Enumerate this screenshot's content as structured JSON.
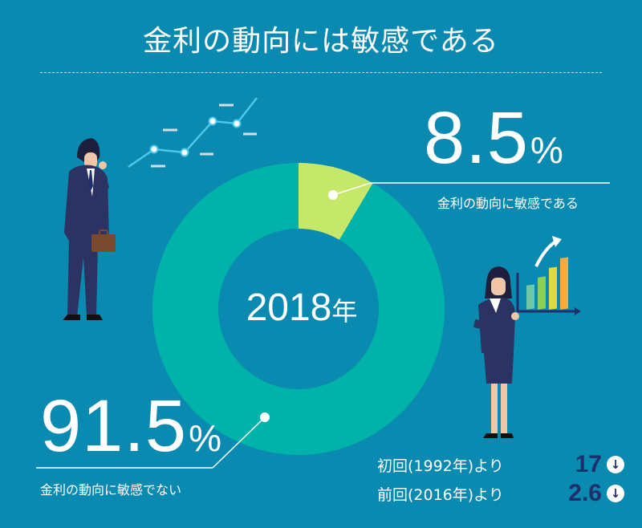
{
  "title": "金利の動向には敏感である",
  "chart_data": {
    "type": "pie",
    "center_label": "2018",
    "center_unit": "年",
    "series": [
      {
        "value": 8.5,
        "value_text": "8.5",
        "unit": "%",
        "label": "金利の動向に敏感である",
        "color": "#c6e86a"
      },
      {
        "value": 91.5,
        "value_text": "91.5",
        "unit": "%",
        "label": "金利の動向に敏感でない",
        "color": "#00b3aa"
      }
    ]
  },
  "comparisons": [
    {
      "label": "初回(1992年)より",
      "value": "17",
      "direction": "down"
    },
    {
      "label": "前回(2016年)より",
      "value": "2.6",
      "direction": "down"
    }
  ],
  "colors": {
    "background": "#0a8ab0",
    "ring_major": "#00b3aa",
    "ring_minor": "#c6e86a",
    "accent_dark": "#1e2f6b"
  },
  "icons": {
    "arrow_down": "↓"
  }
}
